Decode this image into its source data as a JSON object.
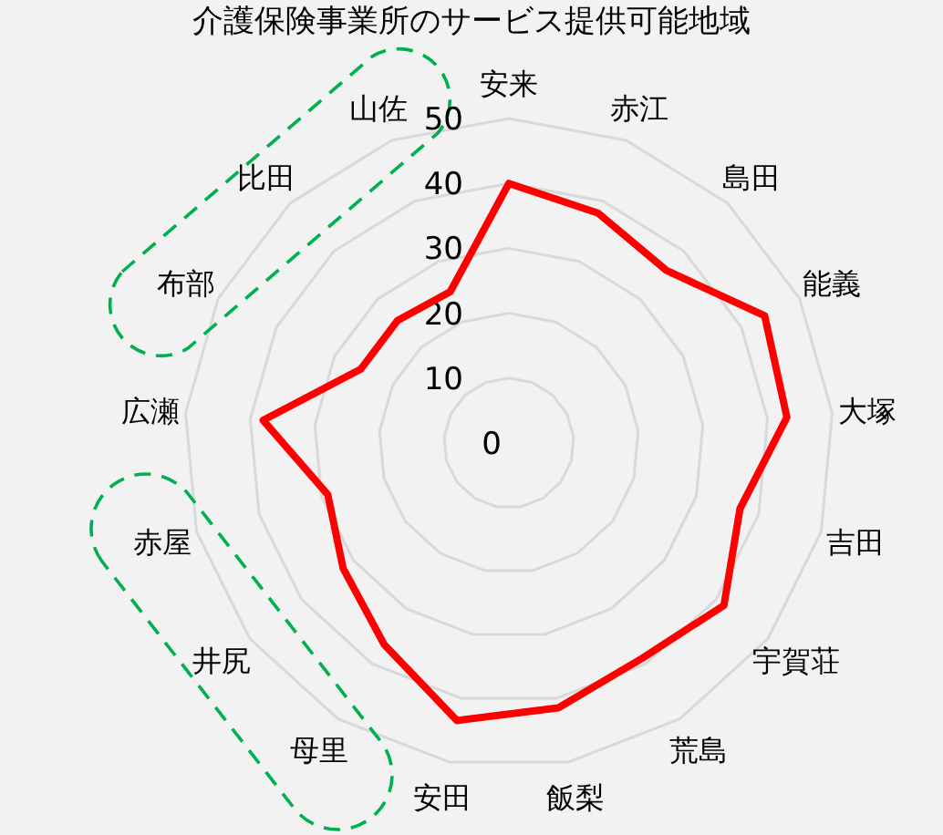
{
  "chart_data": {
    "type": "radar",
    "title": "介護保険事業所のサービス提供可能地域",
    "categories": [
      "安来",
      "赤江",
      "島田",
      "能義",
      "大塚",
      "吉田",
      "宇賀荘",
      "荒島",
      "飯梨",
      "安田",
      "母里",
      "井尻",
      "赤屋",
      "広瀬",
      "布部",
      "比田",
      "山佐"
    ],
    "series": [
      {
        "color": "#ff0000",
        "values": [
          40,
          38,
          36,
          44,
          43,
          37,
          41.5,
          39,
          41.5,
          43.5,
          36.5,
          32,
          29,
          38,
          25.5,
          25.5,
          25
        ]
      }
    ],
    "ylim": [
      0,
      50
    ],
    "yticks": [
      0,
      10,
      20,
      30,
      40,
      50
    ],
    "grid": true,
    "marker": "none"
  }
}
